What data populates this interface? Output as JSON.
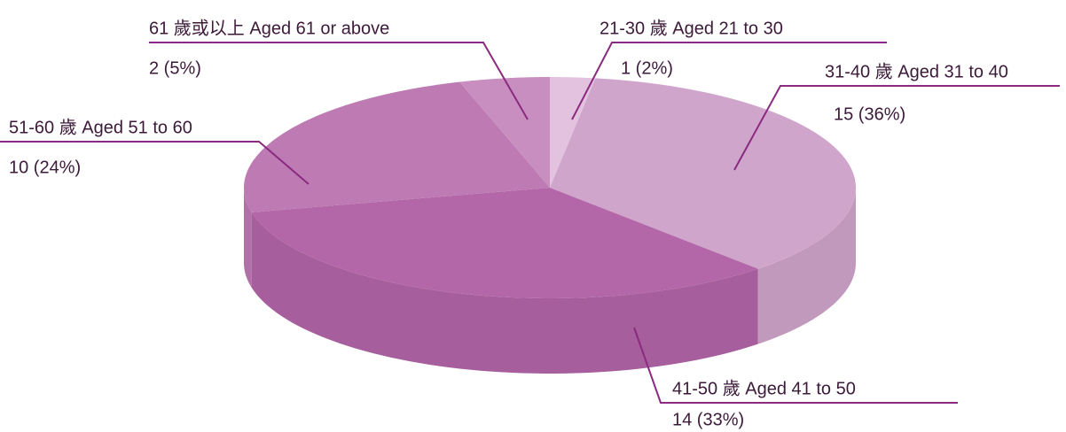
{
  "chart_data": {
    "type": "pie",
    "categories": [
      "21-30 歲 Aged 21 to 30",
      "31-40 歲 Aged 31 to 40",
      "41-50 歲 Aged 41 to 50",
      "51-60 歲 Aged 51 to 60",
      "61 歲或以上 Aged 61 or above"
    ],
    "values": [
      1,
      15,
      14,
      10,
      2
    ],
    "value_labels": [
      "1 (2%)",
      "15 (36%)",
      "14 (33%)",
      "10 (24%)",
      "2 (5%)"
    ],
    "colors": [
      "#e2c2de",
      "#d0a5cb",
      "#b366a8",
      "#be7ab3",
      "#c88ebf"
    ]
  }
}
